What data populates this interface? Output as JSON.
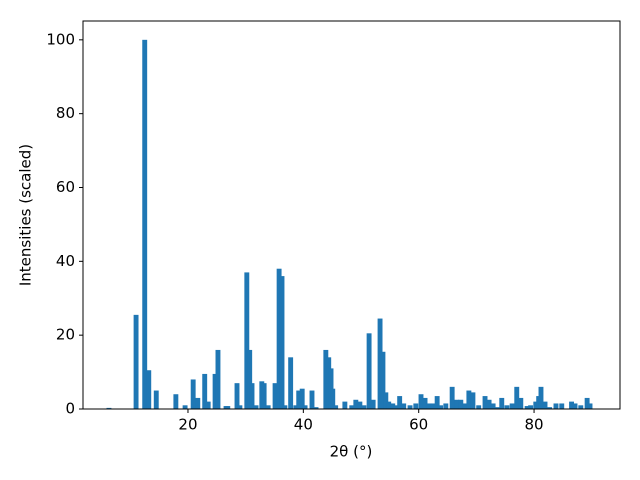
{
  "chart_data": {
    "type": "bar",
    "xlabel": "2θ (°)",
    "ylabel": "Intensities (scaled)",
    "color": "#1f77b4",
    "x": [
      6.3,
      11.0,
      12.5,
      13.2,
      14.5,
      17.9,
      19.5,
      20.9,
      21.7,
      22.9,
      23.5,
      24.7,
      25.2,
      26.6,
      26.9,
      28.5,
      29.0,
      30.2,
      30.7,
      31.1,
      31.8,
      32.8,
      33.2,
      33.9,
      35.1,
      35.8,
      36.3,
      36.8,
      37.8,
      38.7,
      39.2,
      39.8,
      40.3,
      41.5,
      42.2,
      43.9,
      44.4,
      44.8,
      45.1,
      45.6,
      47.2,
      48.4,
      49.1,
      49.8,
      50.5,
      51.4,
      52.1,
      53.3,
      53.8,
      54.3,
      54.8,
      55.5,
      56.2,
      56.7,
      57.4,
      58.5,
      59.5,
      60.4,
      61.1,
      61.8,
      62.5,
      63.2,
      63.8,
      64.7,
      65.8,
      66.6,
      67.3,
      68.0,
      68.7,
      69.4,
      70.4,
      71.5,
      72.2,
      72.9,
      73.6,
      74.4,
      75.3,
      76.2,
      77.0,
      77.7,
      78.8,
      79.4,
      80.3,
      80.8,
      81.2,
      81.9,
      82.7,
      83.8,
      84.8,
      86.5,
      87.1,
      88.1,
      89.2,
      89.7
    ],
    "values": [
      0.3,
      25.5,
      100,
      10.5,
      5,
      4,
      1,
      8,
      3,
      9.5,
      2,
      9.5,
      16,
      0.8,
      0.8,
      7,
      1,
      37,
      16,
      7,
      1,
      7.5,
      7,
      1,
      7,
      38,
      36,
      1,
      14,
      1,
      5,
      5.5,
      1,
      5,
      0.5,
      16,
      14,
      11,
      5.5,
      1,
      2,
      1,
      2.5,
      2,
      1,
      20.5,
      2.5,
      24.5,
      15.5,
      4.5,
      2,
      1.5,
      1,
      3.5,
      1.5,
      1,
      1.5,
      4,
      3,
      1.5,
      1.5,
      3.5,
      1,
      1.5,
      6,
      2.5,
      2.5,
      1.5,
      5,
      4.5,
      1,
      3.5,
      2.5,
      1.5,
      0.5,
      3,
      1,
      1.5,
      6,
      3,
      0.8,
      1,
      2,
      3.5,
      6,
      2,
      0.5,
      1.5,
      1.5,
      2,
      1.5,
      1,
      3,
      1.5
    ],
    "xlim": [
      1.8,
      94.9
    ],
    "ylim": [
      0,
      105.1
    ],
    "xticks": [
      20,
      40,
      60,
      80
    ],
    "yticks": [
      0,
      20,
      40,
      60,
      80,
      100
    ]
  }
}
